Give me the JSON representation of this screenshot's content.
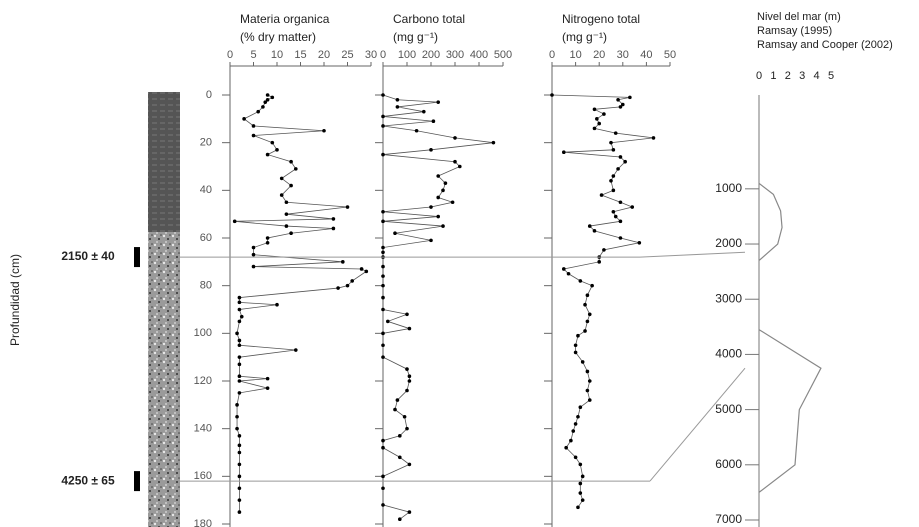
{
  "chart_data": [
    {
      "type": "line",
      "title": "Materia organica",
      "subtitle": "(% dry matter)",
      "ylabel": "Profundidad (cm)",
      "ylim": [
        0,
        180
      ],
      "yticks": [
        0,
        20,
        40,
        60,
        80,
        100,
        120,
        140,
        160,
        180
      ],
      "xlim": [
        0,
        30
      ],
      "xticks": [
        0,
        5,
        10,
        15,
        20,
        25,
        30
      ],
      "color": "#555555",
      "annotations": [
        {
          "text": "2150 ± 40",
          "depth": 68,
          "age": 2150
        },
        {
          "text": "4250 ± 65",
          "depth": 162,
          "age": 4250
        }
      ],
      "depth": [
        0,
        1,
        2,
        3,
        5,
        7,
        10,
        13,
        15,
        17,
        20,
        23,
        25,
        28,
        31,
        35,
        38,
        42,
        45,
        47,
        50,
        52,
        53,
        55,
        56,
        58,
        60,
        62,
        64,
        67,
        70,
        72,
        73,
        74,
        78,
        80,
        81,
        85,
        87,
        88,
        90,
        93,
        95,
        100,
        103,
        105,
        107,
        110,
        113,
        118,
        119,
        120,
        123,
        125,
        130,
        135,
        140,
        143,
        147,
        150,
        155,
        160,
        165,
        170,
        175
      ],
      "values": [
        8,
        9,
        8,
        7.5,
        7,
        6,
        3,
        5,
        20,
        5,
        9,
        10,
        8,
        13,
        14,
        11,
        13,
        11,
        12,
        25,
        12,
        22,
        1,
        12,
        22,
        13,
        8,
        8,
        5,
        5,
        24,
        5,
        28,
        29,
        26,
        25,
        23,
        2,
        2,
        10,
        2,
        2.5,
        2,
        1.5,
        2,
        2,
        14,
        2,
        2,
        2,
        8,
        2,
        8,
        2,
        1.5,
        1.5,
        1.5,
        2,
        2,
        2,
        2,
        2,
        2,
        2,
        2
      ]
    },
    {
      "type": "line",
      "title": "Carbono total",
      "subtitle": "(mg g⁻¹)",
      "xlim": [
        0,
        500
      ],
      "xticks": [
        0,
        100,
        200,
        300,
        400,
        500
      ],
      "color": "#555555",
      "depth": [
        0,
        2,
        3,
        5,
        7,
        9,
        11,
        13,
        15,
        18,
        20,
        23,
        25,
        28,
        30,
        34,
        37,
        40,
        43,
        45,
        47,
        49,
        51,
        53,
        55,
        58,
        61,
        64,
        66,
        68,
        72,
        76,
        80,
        85,
        90,
        92,
        95,
        98,
        100,
        105,
        110,
        115,
        118,
        120,
        124,
        128,
        132,
        135,
        140,
        143,
        145,
        148,
        152,
        155,
        160,
        165,
        172,
        175,
        178
      ],
      "values": [
        0,
        60,
        230,
        60,
        170,
        0,
        210,
        0,
        140,
        300,
        460,
        200,
        0,
        300,
        320,
        230,
        260,
        250,
        230,
        290,
        200,
        0,
        230,
        0,
        250,
        50,
        200,
        0,
        0,
        0,
        0,
        0,
        0,
        0,
        0,
        100,
        20,
        110,
        0,
        0,
        0,
        100,
        110,
        110,
        100,
        60,
        50,
        90,
        100,
        70,
        0,
        0,
        70,
        110,
        0,
        0,
        0,
        110,
        70
      ]
    },
    {
      "type": "line",
      "title": "Nitrogeno total",
      "subtitle": "(mg g⁻¹)",
      "xlim": [
        0,
        50
      ],
      "xticks": [
        0,
        10,
        20,
        30,
        40,
        50
      ],
      "color": "#555555",
      "depth": [
        0,
        1,
        2,
        4,
        5,
        6,
        8,
        10,
        12,
        14,
        16,
        18,
        20,
        23,
        24,
        26,
        28,
        31,
        34,
        36,
        40,
        42,
        45,
        47,
        49,
        51,
        53,
        55,
        57,
        60,
        62,
        65,
        68,
        70,
        73,
        75,
        78,
        80,
        84,
        88,
        92,
        95,
        99,
        101,
        105,
        108,
        112,
        116,
        120,
        124,
        128,
        131,
        135,
        138,
        141,
        145,
        148,
        152,
        155,
        160,
        163,
        167,
        170,
        173
      ],
      "values": [
        0,
        33,
        28,
        30,
        29,
        18,
        22,
        19,
        20,
        18,
        27,
        43,
        25,
        26,
        5,
        29,
        31,
        28,
        26,
        25,
        26,
        21,
        29,
        34,
        26,
        27,
        29,
        16,
        18,
        29,
        37,
        22,
        20,
        20,
        5,
        7,
        12,
        17,
        15,
        14,
        16,
        15,
        14,
        11,
        10,
        10,
        13,
        15,
        16,
        15,
        16,
        12,
        11,
        10,
        9,
        8,
        6,
        10,
        12,
        13,
        12,
        12,
        13,
        11
      ]
    },
    {
      "type": "line",
      "title": "Nivel del mar  (m)",
      "xlim": [
        0,
        5
      ],
      "xticks": [
        0,
        1,
        2,
        3,
        4,
        5
      ],
      "ylim": [
        -700,
        7000
      ],
      "yticks": [
        1000,
        2000,
        3000,
        4000,
        5000,
        6000,
        7000
      ],
      "series": [
        {
          "name": "Ramsay (1995)",
          "color": "#888888",
          "age": [
            900,
            1100,
            1400,
            1700,
            2000,
            2300
          ],
          "values": [
            0,
            1,
            1.5,
            1.6,
            1.3,
            0
          ]
        },
        {
          "name": "Ramsay and Cooper (2002)",
          "color": "#888888",
          "age": [
            3550,
            4250,
            5000,
            6000,
            6500
          ],
          "values": [
            0,
            4.3,
            2.8,
            2.5,
            0
          ]
        }
      ]
    }
  ]
}
